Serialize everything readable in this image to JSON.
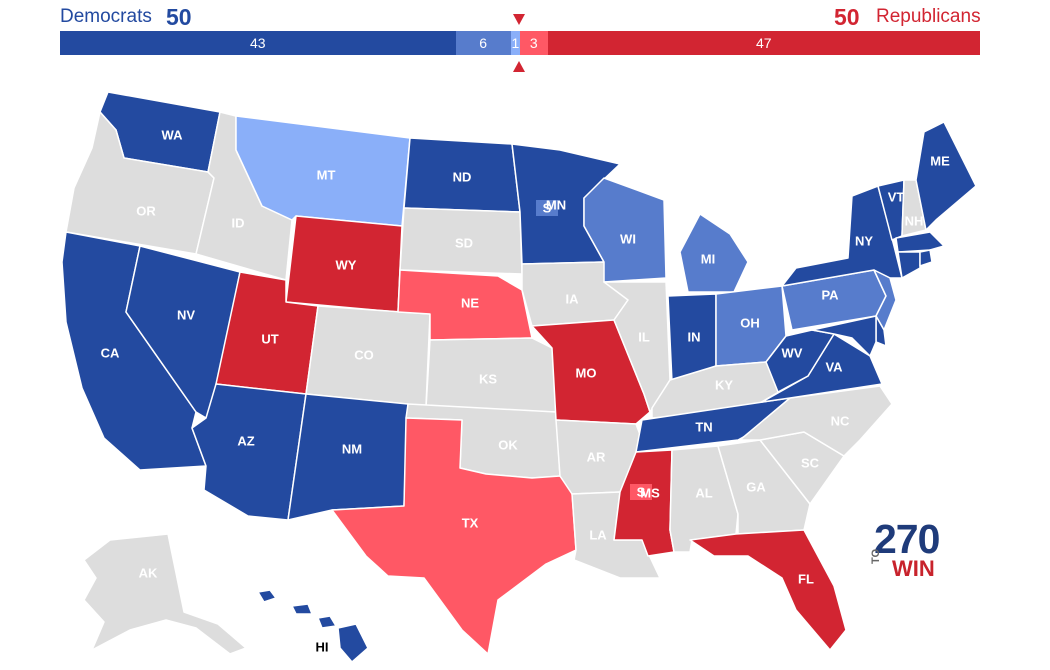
{
  "header": {
    "dem_label": "Democrats",
    "dem_total": "50",
    "rep_total": "50",
    "rep_label": "Republicans"
  },
  "bar": {
    "segments": [
      {
        "value": 43,
        "label": "43",
        "color": "#234aa0"
      },
      {
        "value": 6,
        "label": "6",
        "color": "#577ccc"
      },
      {
        "value": 1,
        "label": "1",
        "color": "#8aaff9"
      },
      {
        "value": 3,
        "label": "3",
        "color": "#ff5865"
      },
      {
        "value": 47,
        "label": "47",
        "color": "#d22532"
      }
    ]
  },
  "colors": {
    "solid_dem": "#234aa0",
    "likely_dem": "#577ccc",
    "lean_dem": "#8aaff9",
    "lean_rep": "#ff5865",
    "solid_rep": "#d22532",
    "no_race": "#dddddd",
    "label_on_color": "#ffffff",
    "label_on_gray": "#ffffff"
  },
  "states": [
    {
      "abbr": "WA",
      "status": "solid_dem"
    },
    {
      "abbr": "OR",
      "status": "no_race"
    },
    {
      "abbr": "CA",
      "status": "solid_dem"
    },
    {
      "abbr": "ID",
      "status": "no_race"
    },
    {
      "abbr": "NV",
      "status": "solid_dem"
    },
    {
      "abbr": "MT",
      "status": "lean_dem"
    },
    {
      "abbr": "WY",
      "status": "solid_rep"
    },
    {
      "abbr": "UT",
      "status": "solid_rep"
    },
    {
      "abbr": "AZ",
      "status": "solid_dem"
    },
    {
      "abbr": "CO",
      "status": "no_race"
    },
    {
      "abbr": "NM",
      "status": "solid_dem"
    },
    {
      "abbr": "ND",
      "status": "solid_dem"
    },
    {
      "abbr": "SD",
      "status": "no_race"
    },
    {
      "abbr": "NE",
      "status": "lean_rep"
    },
    {
      "abbr": "KS",
      "status": "no_race"
    },
    {
      "abbr": "OK",
      "status": "no_race"
    },
    {
      "abbr": "TX",
      "status": "lean_rep"
    },
    {
      "abbr": "MN",
      "status": "solid_dem"
    },
    {
      "abbr": "IA",
      "status": "no_race"
    },
    {
      "abbr": "MO",
      "status": "solid_rep"
    },
    {
      "abbr": "AR",
      "status": "no_race"
    },
    {
      "abbr": "LA",
      "status": "no_race"
    },
    {
      "abbr": "WI",
      "status": "likely_dem"
    },
    {
      "abbr": "IL",
      "status": "no_race"
    },
    {
      "abbr": "MI",
      "status": "likely_dem"
    },
    {
      "abbr": "IN",
      "status": "solid_dem"
    },
    {
      "abbr": "OH",
      "status": "likely_dem"
    },
    {
      "abbr": "KY",
      "status": "no_race"
    },
    {
      "abbr": "TN",
      "status": "solid_dem"
    },
    {
      "abbr": "MS",
      "status": "solid_rep"
    },
    {
      "abbr": "AL",
      "status": "no_race"
    },
    {
      "abbr": "GA",
      "status": "no_race"
    },
    {
      "abbr": "FL",
      "status": "solid_rep"
    },
    {
      "abbr": "SC",
      "status": "no_race"
    },
    {
      "abbr": "NC",
      "status": "no_race"
    },
    {
      "abbr": "VA",
      "status": "solid_dem"
    },
    {
      "abbr": "WV",
      "status": "solid_dem"
    },
    {
      "abbr": "PA",
      "status": "likely_dem"
    },
    {
      "abbr": "NY",
      "status": "solid_dem"
    },
    {
      "abbr": "VT",
      "status": "solid_dem"
    },
    {
      "abbr": "NH",
      "status": "no_race"
    },
    {
      "abbr": "ME",
      "status": "solid_dem"
    },
    {
      "abbr": "NJ",
      "status": "likely_dem"
    },
    {
      "abbr": "MA",
      "status": "solid_dem"
    },
    {
      "abbr": "CT",
      "status": "solid_dem"
    },
    {
      "abbr": "RI",
      "status": "solid_dem"
    },
    {
      "abbr": "DE",
      "status": "solid_dem"
    },
    {
      "abbr": "MD",
      "status": "solid_dem"
    },
    {
      "abbr": "AK",
      "status": "no_race"
    },
    {
      "abbr": "HI",
      "status": "solid_dem"
    }
  ],
  "special_elections": [
    {
      "state": "MN",
      "label": "S",
      "status": "likely_dem"
    },
    {
      "state": "MS",
      "label": "S",
      "status": "lean_rep"
    }
  ],
  "logo": {
    "top": "270",
    "middle": "TO",
    "bottom": "WIN"
  }
}
